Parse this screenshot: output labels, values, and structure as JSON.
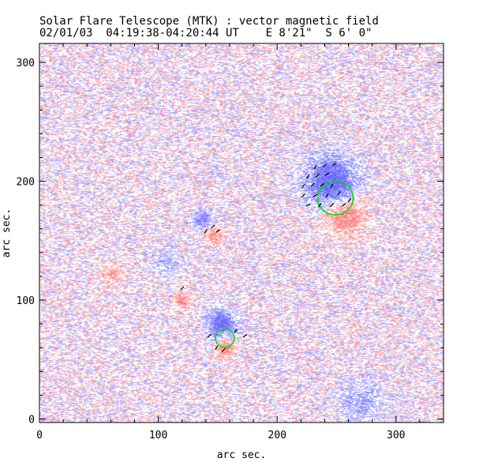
{
  "chart_data": {
    "type": "heatmap",
    "title": "Solar Flare Telescope (MTK) : vector magnetic field",
    "subtitle": "02/01/03  04:19:38-04:20:44 UT    E 8'21\"  S 6' 0\"",
    "xlabel": "arc sec.",
    "ylabel": "arc sec.",
    "xlim": [
      0,
      340
    ],
    "ylim": [
      -3,
      316
    ],
    "xticks": [
      0,
      100,
      200,
      300
    ],
    "yticks": [
      0,
      100,
      200,
      300
    ],
    "colors": {
      "positive": "#ff8080",
      "negative": "#6f6fff",
      "contour": "#00dd00",
      "vector": "#000000"
    },
    "regions": [
      {
        "polarity": "negative",
        "x": 245,
        "y": 200,
        "r": 20,
        "strength": 0.9
      },
      {
        "polarity": "positive",
        "x": 256,
        "y": 172,
        "r": 16,
        "strength": 0.6
      },
      {
        "polarity": "negative",
        "x": 136,
        "y": 168,
        "r": 7,
        "strength": 0.6
      },
      {
        "polarity": "positive",
        "x": 146,
        "y": 155,
        "r": 7,
        "strength": 0.5
      },
      {
        "polarity": "negative",
        "x": 152,
        "y": 81,
        "r": 11,
        "strength": 0.8
      },
      {
        "polarity": "positive",
        "x": 156,
        "y": 60,
        "r": 7,
        "strength": 0.6
      },
      {
        "polarity": "positive",
        "x": 119,
        "y": 100,
        "r": 7,
        "strength": 0.5
      },
      {
        "polarity": "positive",
        "x": 60,
        "y": 122,
        "r": 9,
        "strength": 0.35
      },
      {
        "polarity": "negative",
        "x": 106,
        "y": 133,
        "r": 10,
        "strength": 0.3
      },
      {
        "polarity": "negative",
        "x": 270,
        "y": 15,
        "r": 18,
        "strength": 0.3
      }
    ],
    "contours": [
      {
        "x": 249,
        "y": 186,
        "r": 15
      },
      {
        "x": 156,
        "y": 68,
        "r": 8
      }
    ]
  }
}
